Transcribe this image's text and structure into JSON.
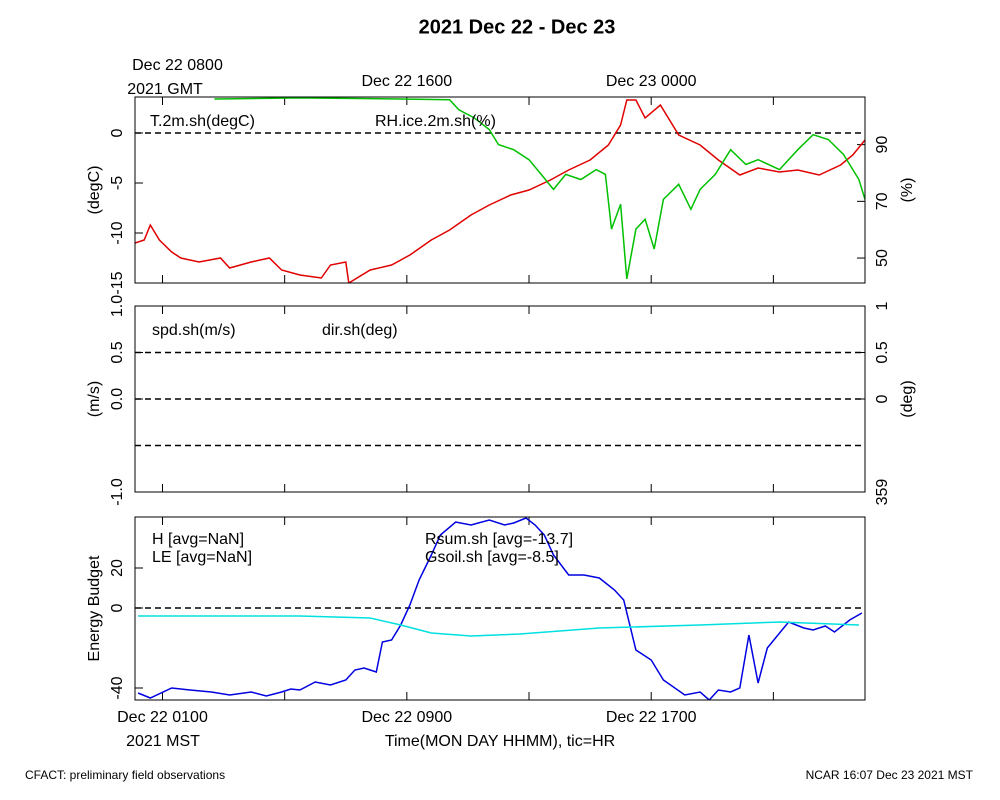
{
  "title": "2021 Dec 22 - Dec 23",
  "footer_left": "CFACT: preliminary field observations",
  "footer_right": "NCAR 16:07 Dec 23 2021 MST",
  "chart_data": [
    {
      "type": "line",
      "ylabel": "(degC)",
      "y2label": "(%)",
      "top_xticks": [
        {
          "value": 1,
          "label": "Dec 22 0800"
        },
        {
          "value": 9,
          "label": "Dec 22 1600"
        },
        {
          "value": 17,
          "label": "Dec 23 0000"
        }
      ],
      "top_xlabel": "2021 GMT",
      "xlim": [
        0.1,
        24
      ],
      "ylim": [
        -15,
        3.6
      ],
      "yticks": [
        0,
        -5,
        -10,
        -15
      ],
      "y2lim": [
        41.2,
        106.8
      ],
      "y2ticks": [
        90,
        70,
        50
      ],
      "hlines": [
        0
      ],
      "series": [
        {
          "name": "T.2m.sh(degC)",
          "color": "#e00000",
          "x": [
            0.1,
            0.4,
            0.6,
            0.9,
            1.3,
            1.6,
            2.2,
            2.9,
            3.2,
            3.9,
            4.5,
            4.9,
            5.5,
            6.2,
            6.5,
            7.0,
            7.1,
            7.8,
            8.5,
            9.1,
            9.8,
            10.4,
            11.1,
            11.7,
            12.4,
            13.0,
            13.7,
            14.3,
            15.0,
            15.6,
            16.0,
            16.2,
            16.5,
            16.8,
            17.3,
            17.9,
            18.6,
            19.2,
            19.9,
            20.5,
            21.2,
            21.8,
            22.5,
            23.2,
            23.6,
            24.0
          ],
          "values": [
            -11.0,
            -10.7,
            -9.2,
            -10.7,
            -11.9,
            -12.5,
            -12.9,
            -12.5,
            -13.5,
            -12.9,
            -12.5,
            -13.7,
            -14.2,
            -14.5,
            -13.2,
            -12.9,
            -15.0,
            -13.7,
            -13.2,
            -12.2,
            -10.7,
            -9.7,
            -8.2,
            -7.2,
            -6.2,
            -5.7,
            -4.7,
            -3.7,
            -2.7,
            -1.2,
            0.8,
            3.3,
            3.3,
            1.5,
            2.8,
            -0.2,
            -1.2,
            -2.7,
            -4.2,
            -3.5,
            -3.9,
            -3.7,
            -4.2,
            -3.2,
            -2.2,
            -0.7
          ]
        },
        {
          "name": "RH.ice.2m.sh(%)",
          "color": "#00c000",
          "axis": "y2",
          "x": [
            2.7,
            5.5,
            8.8,
            10.4,
            10.7,
            11.2,
            11.7,
            12.0,
            12.5,
            13.0,
            13.4,
            13.8,
            14.2,
            14.7,
            15.2,
            15.5,
            15.7,
            16.0,
            16.2,
            16.5,
            16.8,
            17.1,
            17.4,
            17.9,
            18.3,
            18.6,
            19.1,
            19.6,
            20.1,
            20.5,
            21.2,
            21.8,
            22.3,
            22.8,
            23.3,
            23.8,
            24.0
          ],
          "values": [
            106.1,
            106.5,
            106.1,
            105.8,
            102.3,
            99.5,
            95.3,
            90,
            88.2,
            84.7,
            79.5,
            74.2,
            79.5,
            77.7,
            81.2,
            79.5,
            60.2,
            69,
            42.6,
            60.2,
            63.7,
            53.2,
            70.7,
            76,
            67.2,
            74.2,
            79.5,
            88.2,
            83,
            84.7,
            81.2,
            88.2,
            93.5,
            91.8,
            86.5,
            77.7,
            70.7
          ]
        }
      ]
    },
    {
      "type": "line",
      "ylabel": "(m/s)",
      "y2label": "(deg)",
      "xlim": [
        0.1,
        24
      ],
      "ylim": [
        -1,
        1
      ],
      "yticks": [
        {
          "value": 1,
          "label": "1.0"
        },
        {
          "value": 0.5,
          "label": "0.5"
        },
        {
          "value": 0,
          "label": "0.0"
        },
        {
          "value": -1,
          "label": "-1.0"
        }
      ],
      "y2lim": [
        -1,
        1
      ],
      "y2ticks": [
        1,
        0.5,
        0,
        {
          "value": -1,
          "label": "359"
        }
      ],
      "hlines": [
        0.5,
        0,
        -0.5
      ],
      "series": [
        {
          "name": "spd.sh(m/s)",
          "color": "#e00000",
          "x": [],
          "values": []
        },
        {
          "name": "dir.sh(deg)",
          "color": "#00c000",
          "axis": "y2",
          "x": [],
          "values": []
        }
      ]
    },
    {
      "type": "line",
      "ylabel": "Energy Budget",
      "xlim": [
        0.1,
        24
      ],
      "ylim": [
        -46,
        45.5
      ],
      "yticks": [
        20,
        0,
        -40
      ],
      "hlines": [
        0
      ],
      "xticks": [
        {
          "value": 1,
          "label": "Dec 22 0100"
        },
        {
          "value": 9,
          "label": "Dec 22 0900"
        },
        {
          "value": 17,
          "label": "Dec 22 1700"
        }
      ],
      "xminorticks": [
        5,
        13,
        21
      ],
      "xlabel_prefix": "2021 MST",
      "xlabel": "Time(MON DAY HHMM), tic=HR",
      "series": [
        {
          "name": "H [avg=NaN]",
          "color": "#e00000",
          "x": [],
          "values": []
        },
        {
          "name": "LE [avg=NaN]",
          "color": "#00c000",
          "x": [],
          "values": []
        },
        {
          "name": "Rsum.sh [avg=-13.7]",
          "color": "#0000e0",
          "x": [
            0.2,
            0.6,
            1.3,
            1.9,
            2.6,
            3.2,
            3.9,
            4.4,
            4.9,
            5.2,
            5.5,
            6.0,
            6.5,
            7.0,
            7.3,
            7.6,
            8.0,
            8.2,
            8.5,
            8.8,
            9.1,
            9.4,
            9.8,
            10.1,
            10.6,
            11.1,
            11.7,
            12.2,
            12.5,
            12.9,
            13.2,
            13.5,
            13.8,
            14.3,
            14.8,
            15.3,
            15.8,
            16.1,
            16.5,
            17.0,
            17.4,
            18.1,
            18.6,
            18.9,
            19.2,
            19.6,
            19.9,
            20.2,
            20.5,
            20.8,
            21.5,
            22.0,
            22.3,
            22.7,
            23.0,
            23.5,
            23.9
          ],
          "values": [
            -42.5,
            -45,
            -40,
            -41,
            -42,
            -43.5,
            -42,
            -44,
            -42,
            -40.5,
            -41,
            -37,
            -38.5,
            -36,
            -31,
            -30,
            -32,
            -17,
            -16,
            -8.5,
            1.5,
            14,
            26.5,
            36.5,
            43,
            41.5,
            44,
            41.5,
            42.5,
            45,
            41.5,
            36.5,
            26.5,
            16.5,
            16.5,
            15,
            9,
            4,
            -21,
            -26,
            -36,
            -43.5,
            -42,
            -46,
            -41,
            -42,
            -40,
            -13.5,
            -37.5,
            -20,
            -7,
            -10,
            -11,
            -9,
            -12,
            -6,
            -2.5
          ]
        },
        {
          "name": "Gsoil.sh [avg=-8.5]",
          "color": "#00e0e0",
          "x": [
            0.2,
            5.5,
            7.8,
            8.8,
            9.8,
            11.1,
            12.7,
            15.3,
            18.6,
            21.2,
            23.8
          ],
          "values": [
            -4,
            -4,
            -5,
            -8.5,
            -12.5,
            -14,
            -13,
            -10,
            -8.5,
            -7,
            -8.5
          ]
        }
      ]
    }
  ]
}
